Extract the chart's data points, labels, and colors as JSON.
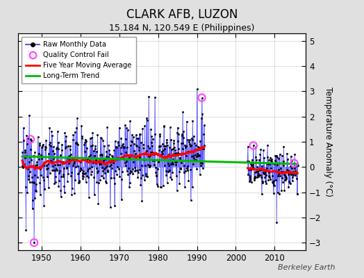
{
  "title": "CLARK AFB, LUZON",
  "subtitle": "15.184 N, 120.549 E (Philippines)",
  "ylabel": "Temperature Anomaly (°C)",
  "watermark": "Berkeley Earth",
  "xlim": [
    1944,
    2018
  ],
  "ylim": [
    -3.3,
    5.3
  ],
  "yticks": [
    -3,
    -2,
    -1,
    0,
    1,
    2,
    3,
    4,
    5
  ],
  "xticks": [
    1950,
    1960,
    1970,
    1980,
    1990,
    2000,
    2010
  ],
  "bg_color": "#e0e0e0",
  "plot_bg_color": "#ffffff",
  "raw_line_color": "#5555ff",
  "raw_marker_color": "#000000",
  "moving_avg_color": "#ff0000",
  "trend_color": "#00bb00",
  "qc_fail_color": "#ff44ff",
  "trend_x": [
    1945,
    2016
  ],
  "trend_y": [
    0.42,
    0.12
  ],
  "pre_start": 1945.0,
  "pre_end": 1992.0,
  "post_start": 2003.0,
  "post_end": 2016.0,
  "seed": 12345
}
